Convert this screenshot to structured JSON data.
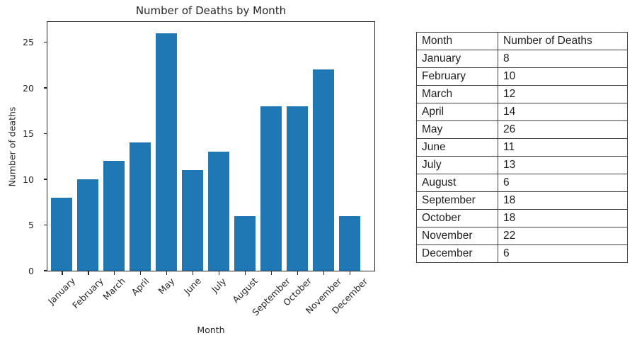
{
  "chart_data": {
    "type": "bar",
    "title": "Number of Deaths by Month",
    "xlabel": "Month",
    "ylabel": "Number of deaths",
    "categories": [
      "January",
      "February",
      "March",
      "April",
      "May",
      "June",
      "July",
      "August",
      "September",
      "October",
      "November",
      "December"
    ],
    "values": [
      8,
      10,
      12,
      14,
      26,
      11,
      13,
      6,
      18,
      18,
      22,
      6
    ],
    "yticks": [
      0,
      5,
      10,
      15,
      20,
      25
    ],
    "ylim": [
      0,
      27.2
    ],
    "bar_color": "#1f77b4",
    "grid": false,
    "legend_position": "none"
  },
  "table": {
    "headers": [
      "Month",
      "Number of Deaths"
    ],
    "rows": [
      [
        "January",
        "8"
      ],
      [
        "February",
        "10"
      ],
      [
        "March",
        "12"
      ],
      [
        "April",
        "14"
      ],
      [
        "May",
        "26"
      ],
      [
        "June",
        "11"
      ],
      [
        "July",
        "13"
      ],
      [
        "August",
        "6"
      ],
      [
        "September",
        "18"
      ],
      [
        "October",
        "18"
      ],
      [
        "November",
        "22"
      ],
      [
        "December",
        "6"
      ]
    ]
  }
}
